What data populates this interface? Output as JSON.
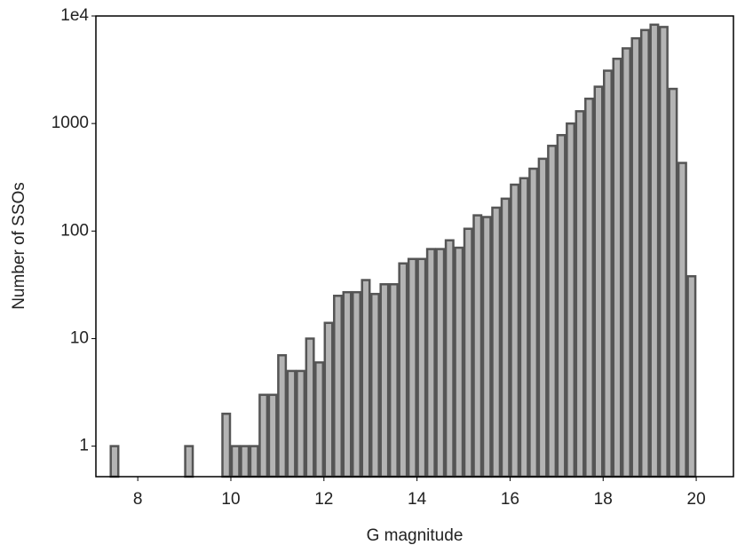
{
  "chart_data": {
    "type": "histogram",
    "xlabel": "G magnitude",
    "ylabel": "Number of SSOs",
    "bins": [
      7.4,
      7.6,
      7.8,
      8.0,
      8.2,
      8.4,
      8.6,
      8.8,
      9.0,
      9.2,
      9.4,
      9.6,
      9.8,
      10.0,
      10.2,
      10.4,
      10.6,
      10.8,
      11.0,
      11.2,
      11.4,
      11.6,
      11.8,
      12.0,
      12.2,
      12.4,
      12.6,
      12.8,
      13.0,
      13.2,
      13.4,
      13.6,
      13.8,
      14.0,
      14.2,
      14.4,
      14.6,
      14.8,
      15.0,
      15.2,
      15.4,
      15.6,
      15.8,
      16.0,
      16.2,
      16.4,
      16.6,
      16.8,
      17.0,
      17.2,
      17.4,
      17.6,
      17.8,
      18.0,
      18.2,
      18.4,
      18.6,
      18.8,
      19.0,
      19.2,
      19.4,
      19.6,
      19.8,
      20.0
    ],
    "values": [
      1,
      0,
      0,
      0,
      0,
      0,
      0,
      0,
      1,
      0,
      0,
      0,
      2,
      1,
      1,
      1,
      3,
      3,
      7,
      5,
      5,
      10,
      6,
      14,
      25,
      27,
      27,
      35,
      26,
      32,
      32,
      50,
      55,
      55,
      68,
      68,
      82,
      70,
      105,
      140,
      135,
      165,
      200,
      270,
      310,
      380,
      470,
      620,
      780,
      1000,
      1300,
      1700,
      2200,
      3100,
      4000,
      5000,
      6200,
      7400,
      8300,
      7900,
      2100,
      430,
      38
    ],
    "color": "#b4b4b4",
    "edgecolor": "#555555",
    "xlim": [
      7.1,
      20.8
    ],
    "xticks": [
      8,
      10,
      12,
      14,
      16,
      18,
      20
    ],
    "ylim": [
      0.52,
      10000
    ],
    "yscale": "log",
    "yticks": [
      1,
      10,
      100,
      1000,
      {
        "value": 10000,
        "label": "1e4"
      }
    ]
  }
}
